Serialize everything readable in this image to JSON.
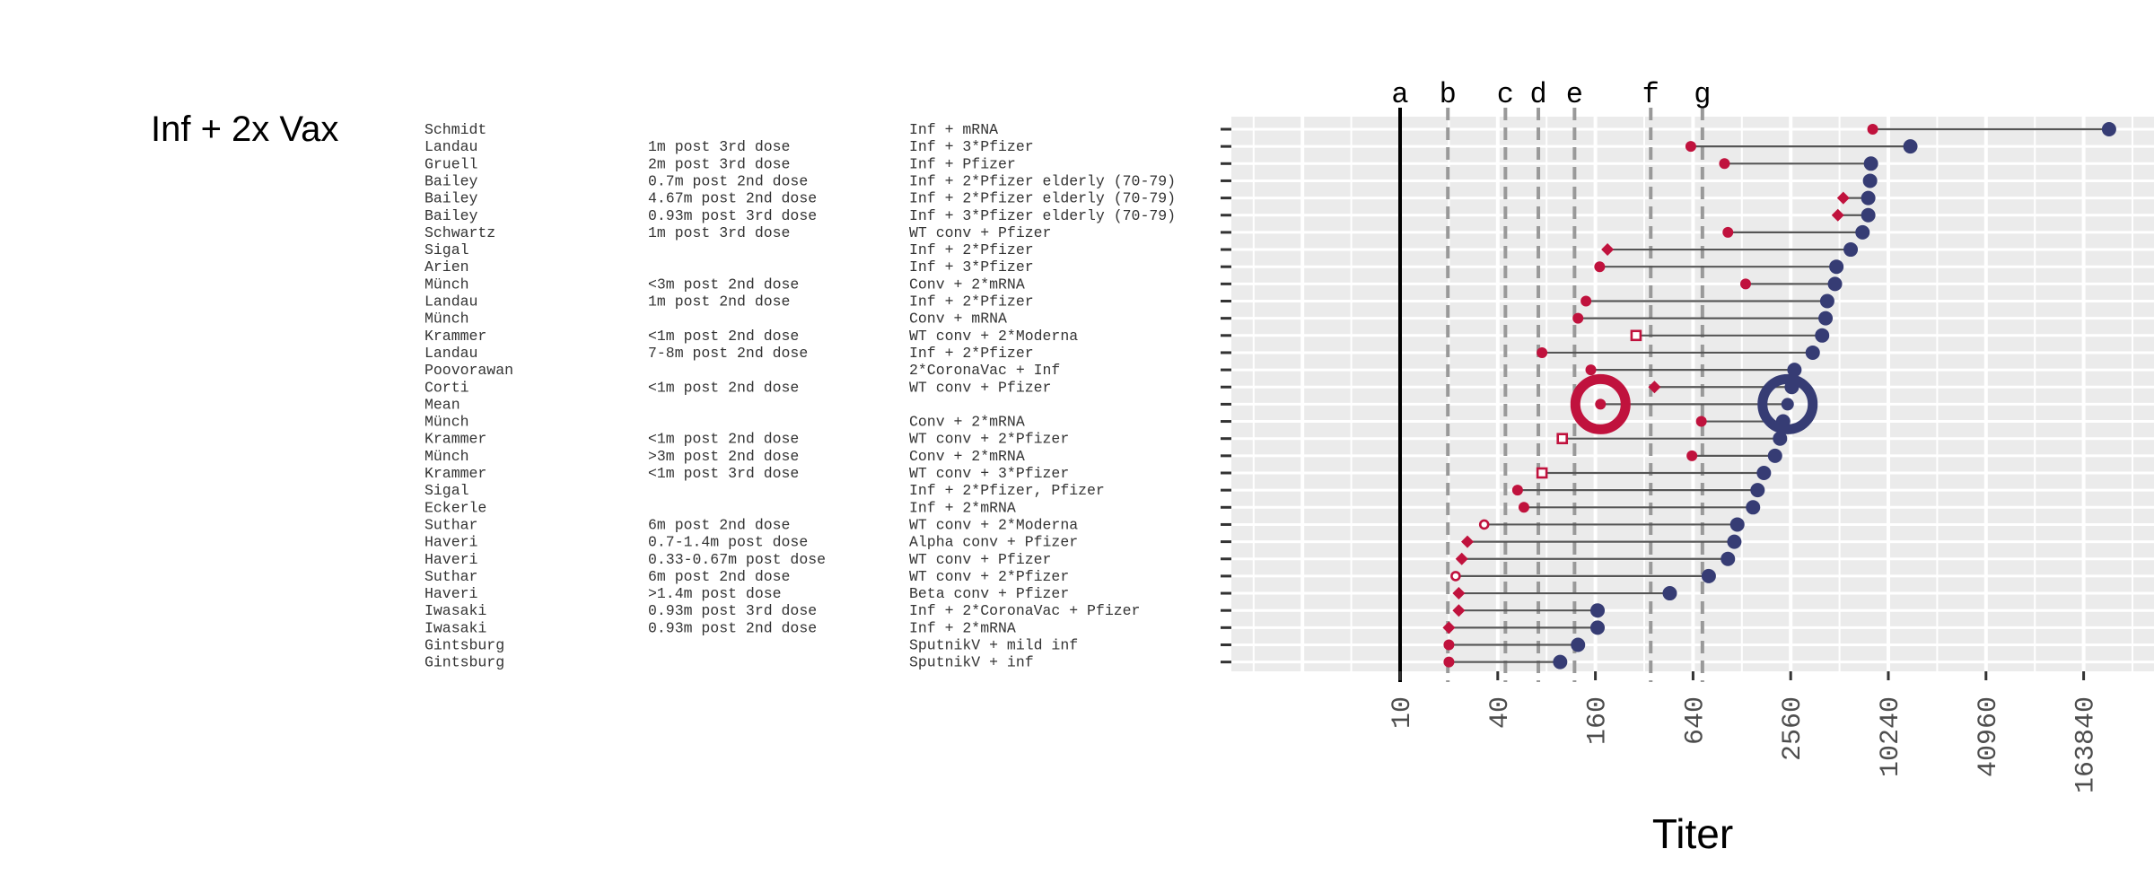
{
  "title": "Inf + 2x Vax",
  "chart_data": {
    "type": "dumbbell",
    "title": "Inf + 2x Vax",
    "xlabel": "Titer",
    "x_scale": "log2",
    "xlim": [
      10,
      327680
    ],
    "x_ticks": [
      10,
      40,
      160,
      640,
      2560,
      10240,
      40960,
      163840
    ],
    "x_tick_labels": [
      "10",
      "40",
      "160",
      "640",
      "2560",
      "10240",
      "40960",
      "163840"
    ],
    "grid": true,
    "reference_lines": [
      {
        "label": "a",
        "x": 10,
        "style": "solid"
      },
      {
        "label": "b",
        "x": 19.7,
        "style": "dashed"
      },
      {
        "label": "c",
        "x": 44.6,
        "style": "dashed"
      },
      {
        "label": "d",
        "x": 71.2,
        "style": "dashed"
      },
      {
        "label": "e",
        "x": 119,
        "style": "dashed"
      },
      {
        "label": "f",
        "x": 351,
        "style": "dashed"
      },
      {
        "label": "g",
        "x": 731,
        "style": "dashed"
      }
    ],
    "columns": [
      "study",
      "timing",
      "group"
    ],
    "rows": [
      {
        "study": "Schmidt",
        "timing": "",
        "group": "Inf + mRNA",
        "omicron": 8200,
        "wt": 235000,
        "marker": "circle"
      },
      {
        "study": "Landau",
        "timing": "1m post 3rd dose",
        "group": "Inf + 3*Pfizer",
        "omicron": 620,
        "wt": 14000,
        "marker": "circle"
      },
      {
        "study": "Gruell",
        "timing": "2m post 3rd dose",
        "group": "Inf + Pfizer",
        "omicron": 1000,
        "wt": 8000,
        "marker": "circle"
      },
      {
        "study": "Bailey",
        "timing": "0.7m post 2nd dose",
        "group": "Inf + 2*Pfizer elderly (70-79)",
        "omicron": null,
        "wt": 7900,
        "marker": "none"
      },
      {
        "study": "Bailey",
        "timing": "4.67m post 2nd dose",
        "group": "Inf + 2*Pfizer elderly (70-79)",
        "omicron": 5400,
        "wt": 7700,
        "marker": "diamond"
      },
      {
        "study": "Bailey",
        "timing": "0.93m post 3rd dose",
        "group": "Inf + 3*Pfizer elderly (70-79)",
        "omicron": 5000,
        "wt": 7700,
        "marker": "diamond"
      },
      {
        "study": "Schwartz",
        "timing": "1m post 3rd dose",
        "group": "WT conv + Pfizer",
        "omicron": 1050,
        "wt": 7100,
        "marker": "circle"
      },
      {
        "study": "Sigal",
        "timing": "",
        "group": "Inf + 2*Pfizer",
        "omicron": 190,
        "wt": 6000,
        "marker": "diamond"
      },
      {
        "study": "Arien",
        "timing": "",
        "group": "Inf + 3*Pfizer",
        "omicron": 170,
        "wt": 4900,
        "marker": "circle"
      },
      {
        "study": "Münch",
        "timing": "<3m post 2nd dose",
        "group": "Conv + 2*mRNA",
        "omicron": 1350,
        "wt": 4800,
        "marker": "circle"
      },
      {
        "study": "Landau",
        "timing": "1m post 2nd dose",
        "group": "Inf + 2*Pfizer",
        "omicron": 140,
        "wt": 4300,
        "marker": "circle"
      },
      {
        "study": "Münch",
        "timing": "",
        "group": "Conv + mRNA",
        "omicron": 125,
        "wt": 4200,
        "marker": "circle"
      },
      {
        "study": "Krammer",
        "timing": "<1m post 2nd dose",
        "group": "WT conv + 2*Moderna",
        "omicron": 285,
        "wt": 4000,
        "marker": "square-open"
      },
      {
        "study": "Landau",
        "timing": "7-8m post 2nd dose",
        "group": "Inf + 2*Pfizer",
        "omicron": 75,
        "wt": 3500,
        "marker": "circle"
      },
      {
        "study": "Poovorawan",
        "timing": "",
        "group": "2*CoronaVac + Inf",
        "omicron": 150,
        "wt": 2700,
        "marker": "circle"
      },
      {
        "study": "Corti",
        "timing": "<1m post 2nd dose",
        "group": "WT conv + Pfizer",
        "omicron": 370,
        "wt": 2600,
        "marker": "diamond"
      },
      {
        "study": "Mean",
        "timing": "",
        "group": "",
        "omicron": 172,
        "wt": 2450,
        "marker": "mean"
      },
      {
        "study": "Münch",
        "timing": "",
        "group": "Conv + 2*mRNA",
        "omicron": 720,
        "wt": 2300,
        "marker": "circle"
      },
      {
        "study": "Krammer",
        "timing": "<1m post 2nd dose",
        "group": "WT conv + 2*Pfizer",
        "omicron": 100,
        "wt": 2200,
        "marker": "square-open"
      },
      {
        "study": "Münch",
        "timing": ">3m post 2nd dose",
        "group": "Conv + 2*mRNA",
        "omicron": 630,
        "wt": 2050,
        "marker": "circle"
      },
      {
        "study": "Krammer",
        "timing": "<1m post 3rd dose",
        "group": "WT conv + 3*Pfizer",
        "omicron": 75,
        "wt": 1750,
        "marker": "square-open"
      },
      {
        "study": "Sigal",
        "timing": "",
        "group": "Inf + 2*Pfizer, Pfizer",
        "omicron": 53,
        "wt": 1600,
        "marker": "circle"
      },
      {
        "study": "Eckerle",
        "timing": "",
        "group": "Inf + 2*mRNA",
        "omicron": 58,
        "wt": 1500,
        "marker": "circle"
      },
      {
        "study": "Suthar",
        "timing": "6m post 2nd dose",
        "group": "WT conv + 2*Moderna",
        "omicron": 33,
        "wt": 1200,
        "marker": "circle-open"
      },
      {
        "study": "Haveri",
        "timing": "0.7-1.4m post dose",
        "group": "Alpha conv + Pfizer",
        "omicron": 26,
        "wt": 1150,
        "marker": "diamond"
      },
      {
        "study": "Haveri",
        "timing": "0.33-0.67m post dose",
        "group": "WT conv + Pfizer",
        "omicron": 24,
        "wt": 1050,
        "marker": "diamond"
      },
      {
        "study": "Suthar",
        "timing": "6m post 2nd dose",
        "group": "WT conv + 2*Pfizer",
        "omicron": 22,
        "wt": 800,
        "marker": "circle-open"
      },
      {
        "study": "Haveri",
        "timing": ">1.4m post dose",
        "group": "Beta conv + Pfizer",
        "omicron": 23,
        "wt": 460,
        "marker": "diamond"
      },
      {
        "study": "Iwasaki",
        "timing": "0.93m post 3rd dose",
        "group": "Inf + 2*CoronaVac + Pfizer",
        "omicron": 23,
        "wt": 165,
        "marker": "diamond"
      },
      {
        "study": "Iwasaki",
        "timing": "0.93m post 2nd dose",
        "group": "Inf + 2*mRNA",
        "omicron": 20,
        "wt": 165,
        "marker": "diamond"
      },
      {
        "study": "Gintsburg",
        "timing": "",
        "group": "SputnikV + mild inf",
        "omicron": 20,
        "wt": 125,
        "marker": "circle"
      },
      {
        "study": "Gintsburg",
        "timing": "",
        "group": "SputnikV + inf",
        "omicron": 20,
        "wt": 97,
        "marker": "circle"
      }
    ],
    "colors": {
      "omicron": "#c0123d",
      "wt": "#363c74",
      "panel": "#ebebeb",
      "grid": "#ffffff",
      "segment": "#555555",
      "ref_solid": "#000000",
      "ref_dashed": "#999999"
    }
  }
}
